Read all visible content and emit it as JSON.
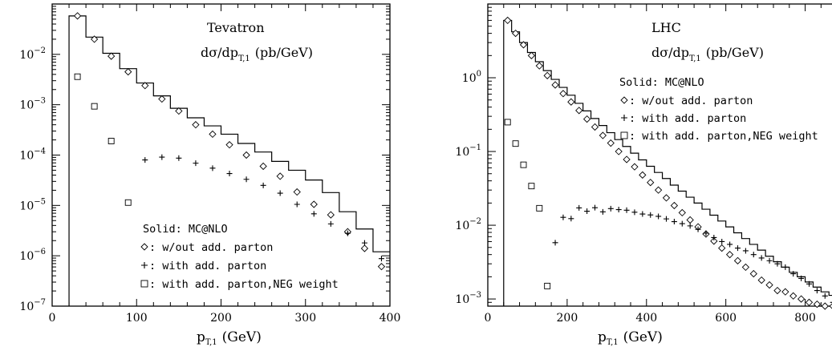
{
  "chart_data": [
    {
      "id": "tevatron",
      "type": "scatter",
      "log_y": true,
      "xlim": [
        0,
        400
      ],
      "ylim": [
        1e-07,
        0.1
      ],
      "x_ticks": [
        0,
        100,
        200,
        300,
        400
      ],
      "y_ticks": [
        {
          "value": 1e-07,
          "base": "10",
          "exp": "−7"
        },
        {
          "value": 1e-06,
          "base": "10",
          "exp": "−6"
        },
        {
          "value": 1e-05,
          "base": "10",
          "exp": "−5"
        },
        {
          "value": 0.0001,
          "base": "10",
          "exp": "−4"
        },
        {
          "value": 0.001,
          "base": "10",
          "exp": "−3"
        },
        {
          "value": 0.01,
          "base": "10",
          "exp": "−2"
        }
      ],
      "xlabel": {
        "main": "p",
        "sub": "T,1",
        "unit": "(GeV)"
      },
      "title": "Tevatron",
      "subtitle": {
        "pre": "dσ/dp",
        "sub": "T,1",
        "post": "(pb/GeV)"
      },
      "legend_title": "Solid: MC@NLO",
      "legend": [
        {
          "marker": "diamond",
          "label": ": w/out add. parton"
        },
        {
          "marker": "plus",
          "label": ": with add. parton"
        },
        {
          "marker": "square",
          "label": ": with add. parton,NEG weight"
        }
      ],
      "series": [
        {
          "name": "Solid: MC@NLO",
          "marker": "step",
          "bin_edges": [
            20,
            40,
            60,
            80,
            100,
            120,
            140,
            160,
            180,
            200,
            220,
            240,
            260,
            280,
            300,
            320,
            340,
            360,
            380,
            400
          ],
          "values": [
            0.058,
            0.022,
            0.0105,
            0.0052,
            0.0027,
            0.0015,
            0.00085,
            0.00055,
            0.00038,
            0.00026,
            0.00017,
            0.000115,
            7.5e-05,
            5e-05,
            3.2e-05,
            1.8e-05,
            7.5e-06,
            3.4e-06,
            1.2e-06
          ]
        },
        {
          "name": "w/out add. parton",
          "marker": "diamond",
          "x": [
            30,
            50,
            70,
            90,
            110,
            130,
            150,
            170,
            190,
            210,
            230,
            250,
            270,
            290,
            310,
            330,
            350,
            370,
            390
          ],
          "y": [
            0.058,
            0.02,
            0.0092,
            0.0045,
            0.0024,
            0.0013,
            0.00075,
            0.0004,
            0.00026,
            0.00016,
            0.0001,
            6e-05,
            3.8e-05,
            1.85e-05,
            1.05e-05,
            6.5e-06,
            3e-06,
            1.4e-06,
            6.1e-07
          ]
        },
        {
          "name": "with add. parton",
          "marker": "plus",
          "x": [
            110,
            130,
            150,
            170,
            190,
            210,
            230,
            250,
            270,
            290,
            310,
            330,
            350,
            370,
            390
          ],
          "y": [
            8e-05,
            9.1e-05,
            8.7e-05,
            6.9e-05,
            5.5e-05,
            4.3e-05,
            3.3e-05,
            2.5e-05,
            1.75e-05,
            1.05e-05,
            6.8e-06,
            4.3e-06,
            2.8e-06,
            1.8e-06,
            8.8e-07
          ]
        },
        {
          "name": "with add. parton,NEG weight",
          "marker": "square",
          "x": [
            30,
            50,
            70,
            90
          ],
          "y": [
            0.0036,
            0.00093,
            0.00019,
            1.14e-05
          ]
        }
      ]
    },
    {
      "id": "lhc",
      "type": "scatter",
      "log_y": true,
      "xlim": [
        0,
        900
      ],
      "ylim": [
        0.0008,
        10
      ],
      "x_ticks": [
        0,
        200,
        400,
        600,
        800
      ],
      "y_ticks": [
        {
          "value": 0.001,
          "base": "10",
          "exp": "−3"
        },
        {
          "value": 0.01,
          "base": "10",
          "exp": "−2"
        },
        {
          "value": 0.1,
          "base": "10",
          "exp": "−1"
        },
        {
          "value": 1,
          "base": "10",
          "exp": "0"
        }
      ],
      "xlabel": {
        "main": "p",
        "sub": "T,1",
        "unit": "(GeV)"
      },
      "title": "LHC",
      "subtitle": {
        "pre": "dσ/dp",
        "sub": "T,1",
        "post": "(pb/GeV)"
      },
      "legend_title": "Solid: MC@NLO",
      "legend": [
        {
          "marker": "diamond",
          "label": ": w/out add. parton"
        },
        {
          "marker": "plus",
          "label": ": with add. parton"
        },
        {
          "marker": "square",
          "label": ": with add. parton,NEG weight"
        }
      ],
      "series": [
        {
          "name": "Solid: MC@NLO",
          "marker": "step",
          "bin_edges": [
            40,
            60,
            80,
            100,
            120,
            140,
            160,
            180,
            200,
            220,
            240,
            260,
            280,
            300,
            320,
            340,
            360,
            380,
            400,
            420,
            440,
            460,
            480,
            500,
            520,
            540,
            560,
            580,
            600,
            620,
            640,
            660,
            680,
            700,
            720,
            740,
            760,
            780,
            800,
            820,
            840,
            860,
            880,
            900
          ],
          "values": [
            6.0,
            4.2,
            3.0,
            2.2,
            1.65,
            1.25,
            0.95,
            0.74,
            0.58,
            0.45,
            0.355,
            0.28,
            0.225,
            0.18,
            0.145,
            0.117,
            0.095,
            0.077,
            0.063,
            0.052,
            0.043,
            0.035,
            0.029,
            0.024,
            0.02,
            0.0165,
            0.0137,
            0.0114,
            0.0095,
            0.0079,
            0.0066,
            0.0055,
            0.0046,
            0.0038,
            0.0032,
            0.0027,
            0.0023,
            0.002,
            0.0017,
            0.00145,
            0.00125,
            0.00112,
            0.00105
          ]
        },
        {
          "name": "w/out add. parton",
          "marker": "diamond",
          "x": [
            50,
            70,
            90,
            110,
            130,
            150,
            170,
            190,
            210,
            230,
            250,
            270,
            290,
            310,
            330,
            350,
            370,
            390,
            410,
            430,
            450,
            470,
            490,
            510,
            530,
            550,
            570,
            590,
            610,
            630,
            650,
            670,
            690,
            710,
            730,
            750,
            770,
            790,
            810,
            830,
            850,
            870,
            890
          ],
          "y": [
            6.0,
            4.0,
            2.8,
            2.0,
            1.45,
            1.07,
            0.8,
            0.61,
            0.47,
            0.36,
            0.275,
            0.215,
            0.165,
            0.13,
            0.1,
            0.078,
            0.062,
            0.048,
            0.038,
            0.03,
            0.0235,
            0.0185,
            0.0148,
            0.0118,
            0.0095,
            0.0076,
            0.0061,
            0.0049,
            0.004,
            0.0033,
            0.0027,
            0.0022,
            0.0018,
            0.00155,
            0.0013,
            0.00125,
            0.0011,
            0.001,
            0.0009,
            0.00085,
            0.0008,
            0.0008,
            0.0008
          ]
        },
        {
          "name": "with add. parton",
          "marker": "plus",
          "x": [
            170,
            190,
            210,
            230,
            250,
            270,
            290,
            310,
            330,
            350,
            370,
            390,
            410,
            430,
            450,
            470,
            490,
            510,
            530,
            550,
            570,
            590,
            610,
            630,
            650,
            670,
            690,
            710,
            730,
            750,
            770,
            790,
            810,
            830,
            850,
            870,
            890
          ],
          "y": [
            0.0058,
            0.0128,
            0.0123,
            0.0172,
            0.0155,
            0.0173,
            0.0152,
            0.0168,
            0.0163,
            0.016,
            0.015,
            0.0142,
            0.0138,
            0.0132,
            0.0122,
            0.0112,
            0.0105,
            0.0098,
            0.0088,
            0.0078,
            0.0068,
            0.006,
            0.0055,
            0.0049,
            0.0045,
            0.004,
            0.0036,
            0.0033,
            0.003,
            0.0027,
            0.0022,
            0.0019,
            0.0016,
            0.0013,
            0.0011,
            0.0009,
            0.00085
          ]
        },
        {
          "name": "with add. parton,NEG weight",
          "marker": "square",
          "x": [
            50,
            70,
            90,
            110,
            130,
            150
          ],
          "y": [
            0.25,
            0.128,
            0.066,
            0.034,
            0.017,
            0.0015
          ]
        }
      ]
    }
  ]
}
